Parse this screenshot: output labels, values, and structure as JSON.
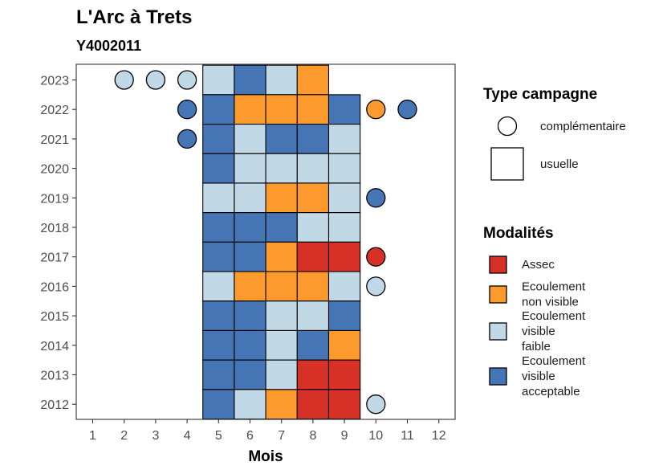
{
  "chart_data": {
    "type": "heatmap",
    "title": "L'Arc à Trets",
    "subtitle": "Y4002011",
    "xlabel": "Mois",
    "ylabel": "",
    "x_ticks": [
      1,
      2,
      3,
      4,
      5,
      6,
      7,
      8,
      9,
      10,
      11,
      12
    ],
    "y_ticks": [
      2023,
      2022,
      2021,
      2020,
      2019,
      2018,
      2017,
      2016,
      2015,
      2014,
      2013,
      2012
    ],
    "legend_position": "right",
    "grid": false,
    "colors": {
      "Assec": "#d73027",
      "Ecoulement non visible": "#fd9a2e",
      "Ecoulement visible faible": "#c1d8e6",
      "Ecoulement visible acceptable": "#4575b4"
    },
    "legend_type": {
      "title": "Type campagne",
      "items": [
        {
          "label": "complémentaire",
          "shape": "circle"
        },
        {
          "label": "usuelle",
          "shape": "square"
        }
      ]
    },
    "legend_modalites": {
      "title": "Modalités",
      "items": [
        {
          "key": "Assec",
          "lines": [
            "Assec"
          ]
        },
        {
          "key": "Ecoulement non visible",
          "lines": [
            "Ecoulement",
            "non visible"
          ]
        },
        {
          "key": "Ecoulement visible faible",
          "lines": [
            "Ecoulement",
            "visible",
            "faible"
          ]
        },
        {
          "key": "Ecoulement visible acceptable",
          "lines": [
            "Ecoulement",
            "visible",
            "acceptable"
          ]
        }
      ]
    },
    "usuelle": [
      {
        "year": 2023,
        "values": {
          "5": "Ecoulement visible faible",
          "6": "Ecoulement visible acceptable",
          "7": "Ecoulement visible faible",
          "8": "Ecoulement non visible"
        }
      },
      {
        "year": 2022,
        "values": {
          "5": "Ecoulement visible acceptable",
          "6": "Ecoulement non visible",
          "7": "Ecoulement non visible",
          "8": "Ecoulement non visible",
          "9": "Ecoulement visible acceptable"
        }
      },
      {
        "year": 2021,
        "values": {
          "5": "Ecoulement visible acceptable",
          "6": "Ecoulement visible faible",
          "7": "Ecoulement visible acceptable",
          "8": "Ecoulement visible acceptable",
          "9": "Ecoulement visible faible"
        }
      },
      {
        "year": 2020,
        "values": {
          "5": "Ecoulement visible acceptable",
          "6": "Ecoulement visible faible",
          "7": "Ecoulement visible faible",
          "8": "Ecoulement visible faible",
          "9": "Ecoulement visible faible"
        }
      },
      {
        "year": 2019,
        "values": {
          "5": "Ecoulement visible faible",
          "6": "Ecoulement visible faible",
          "7": "Ecoulement non visible",
          "8": "Ecoulement non visible",
          "9": "Ecoulement visible faible"
        }
      },
      {
        "year": 2018,
        "values": {
          "5": "Ecoulement visible acceptable",
          "6": "Ecoulement visible acceptable",
          "7": "Ecoulement visible acceptable",
          "8": "Ecoulement visible faible",
          "9": "Ecoulement visible faible"
        }
      },
      {
        "year": 2017,
        "values": {
          "5": "Ecoulement visible acceptable",
          "6": "Ecoulement visible acceptable",
          "7": "Ecoulement non visible",
          "8": "Assec",
          "9": "Assec"
        }
      },
      {
        "year": 2016,
        "values": {
          "5": "Ecoulement visible faible",
          "6": "Ecoulement non visible",
          "7": "Ecoulement non visible",
          "8": "Ecoulement non visible",
          "9": "Ecoulement visible faible"
        }
      },
      {
        "year": 2015,
        "values": {
          "5": "Ecoulement visible acceptable",
          "6": "Ecoulement visible acceptable",
          "7": "Ecoulement visible faible",
          "8": "Ecoulement visible faible",
          "9": "Ecoulement visible acceptable"
        }
      },
      {
        "year": 2014,
        "values": {
          "5": "Ecoulement visible acceptable",
          "6": "Ecoulement visible acceptable",
          "7": "Ecoulement visible faible",
          "8": "Ecoulement visible acceptable",
          "9": "Ecoulement non visible"
        }
      },
      {
        "year": 2013,
        "values": {
          "5": "Ecoulement visible acceptable",
          "6": "Ecoulement visible acceptable",
          "7": "Ecoulement visible faible",
          "8": "Assec",
          "9": "Assec"
        }
      },
      {
        "year": 2012,
        "values": {
          "5": "Ecoulement visible acceptable",
          "6": "Ecoulement visible faible",
          "7": "Ecoulement non visible",
          "8": "Assec",
          "9": "Assec"
        }
      }
    ],
    "complementaire": [
      {
        "year": 2023,
        "month": 2,
        "value": "Ecoulement visible faible"
      },
      {
        "year": 2023,
        "month": 3,
        "value": "Ecoulement visible faible"
      },
      {
        "year": 2023,
        "month": 4,
        "value": "Ecoulement visible faible"
      },
      {
        "year": 2022,
        "month": 4,
        "value": "Ecoulement visible acceptable"
      },
      {
        "year": 2022,
        "month": 10,
        "value": "Ecoulement non visible"
      },
      {
        "year": 2022,
        "month": 11,
        "value": "Ecoulement visible acceptable"
      },
      {
        "year": 2021,
        "month": 4,
        "value": "Ecoulement visible acceptable"
      },
      {
        "year": 2019,
        "month": 10,
        "value": "Ecoulement visible acceptable"
      },
      {
        "year": 2017,
        "month": 10,
        "value": "Assec"
      },
      {
        "year": 2016,
        "month": 10,
        "value": "Ecoulement visible faible"
      },
      {
        "year": 2012,
        "month": 10,
        "value": "Ecoulement visible faible"
      }
    ]
  }
}
